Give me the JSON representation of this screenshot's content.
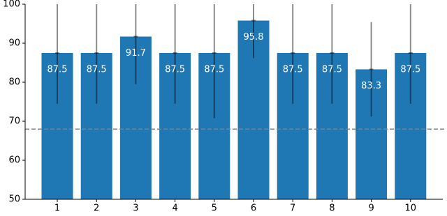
{
  "chart_data": {
    "type": "bar",
    "categories": [
      "1",
      "2",
      "3",
      "4",
      "5",
      "6",
      "7",
      "8",
      "9",
      "10"
    ],
    "values": [
      87.5,
      87.5,
      91.7,
      87.5,
      87.5,
      95.8,
      87.5,
      87.5,
      83.3,
      87.5
    ],
    "errors": [
      13,
      13,
      12.2,
      13,
      16.7,
      9.6,
      13,
      13,
      12.1,
      13
    ],
    "color": "#1f77b4",
    "reference_line": 68,
    "ylim": [
      50,
      100
    ],
    "yticks": [
      50,
      60,
      70,
      80,
      90,
      100
    ]
  }
}
